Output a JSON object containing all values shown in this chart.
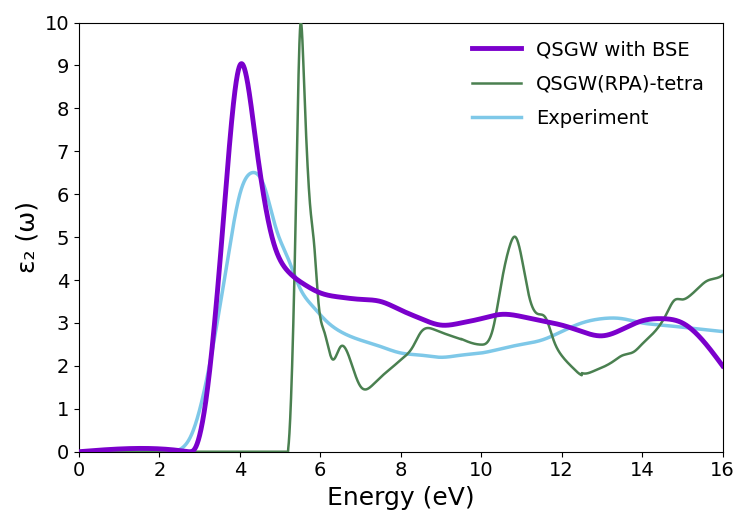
{
  "title": "",
  "xlabel": "Energy (eV)",
  "ylabel": "ε₂ (ω)",
  "xlim": [
    0,
    16
  ],
  "ylim": [
    0,
    10
  ],
  "xticks": [
    0,
    2,
    4,
    6,
    8,
    10,
    12,
    14,
    16
  ],
  "yticks": [
    0,
    1,
    2,
    3,
    4,
    5,
    6,
    7,
    8,
    9,
    10
  ],
  "bse_color": "#7B00CC",
  "rpa_color": "#4A8050",
  "exp_color": "#7EC8E8",
  "bse_lw": 3.5,
  "rpa_lw": 1.8,
  "exp_lw": 2.5,
  "legend_labels": [
    "QSGW with BSE",
    "QSGW(RPA)-tetra",
    "Experiment"
  ],
  "xlabel_fontsize": 18,
  "ylabel_fontsize": 18,
  "tick_fontsize": 14,
  "legend_fontsize": 14,
  "bg_color": "#ffffff"
}
